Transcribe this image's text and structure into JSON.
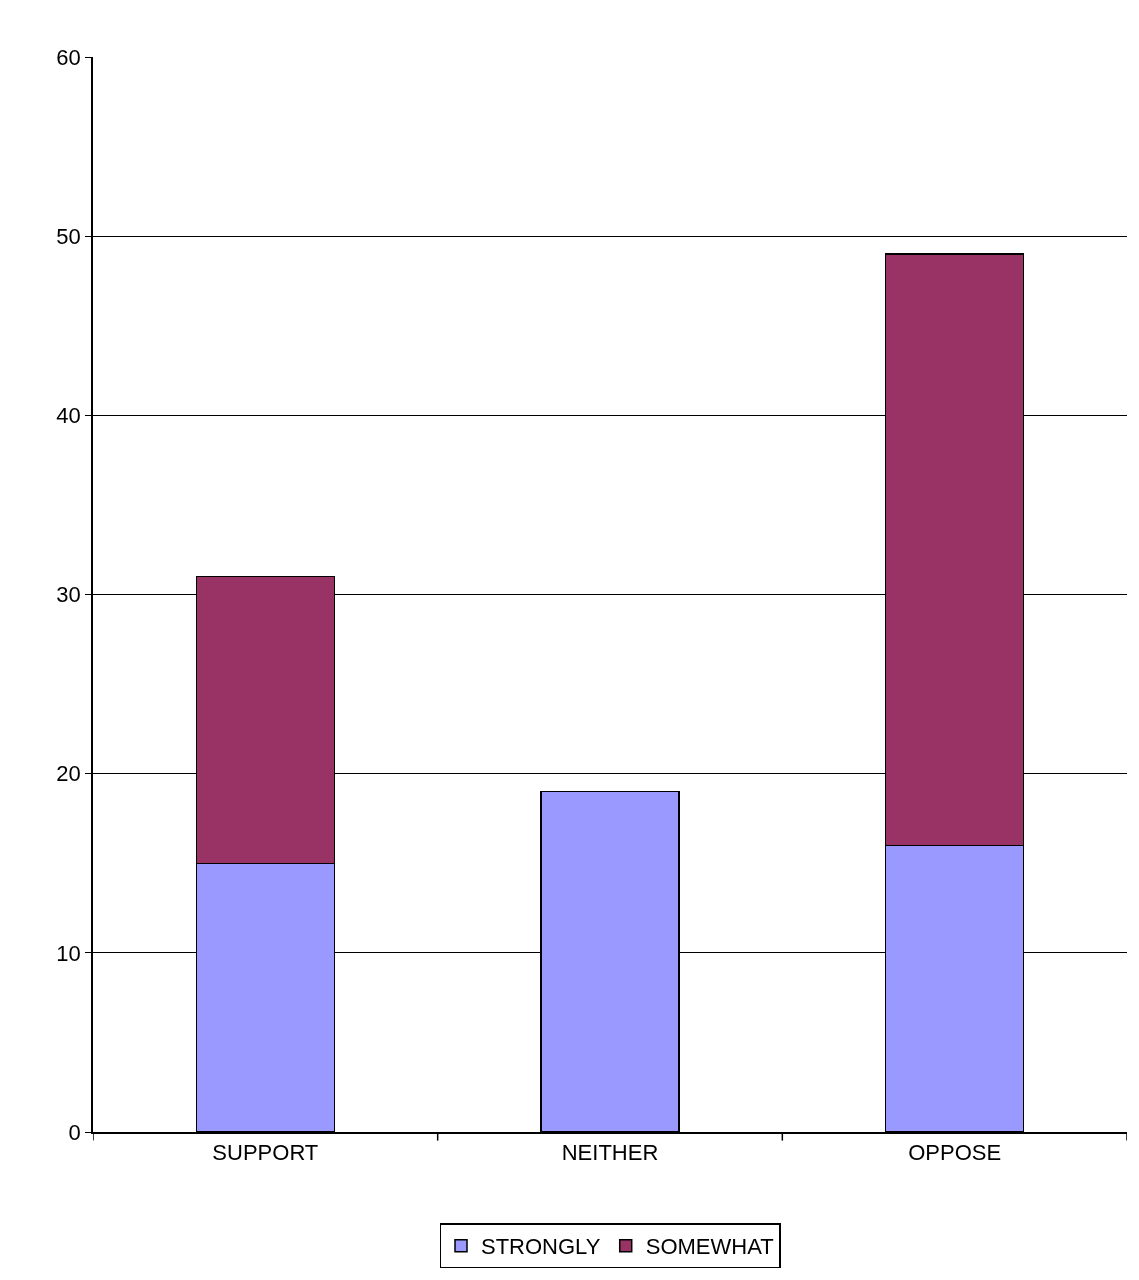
{
  "chart_data": {
    "type": "bar",
    "stacked": true,
    "categories": [
      "SUPPORT",
      "NEITHER",
      "OPPOSE"
    ],
    "series": [
      {
        "name": "STRONGLY",
        "color": "#9999ff",
        "values": [
          15,
          19,
          16
        ]
      },
      {
        "name": "SOMEWHAT",
        "color": "#993366",
        "values": [
          16,
          null,
          33
        ]
      }
    ],
    "ylim": [
      0,
      60
    ],
    "yticks": [
      0,
      10,
      20,
      30,
      40,
      50,
      60
    ],
    "grid": "y",
    "legend": "bottom"
  }
}
